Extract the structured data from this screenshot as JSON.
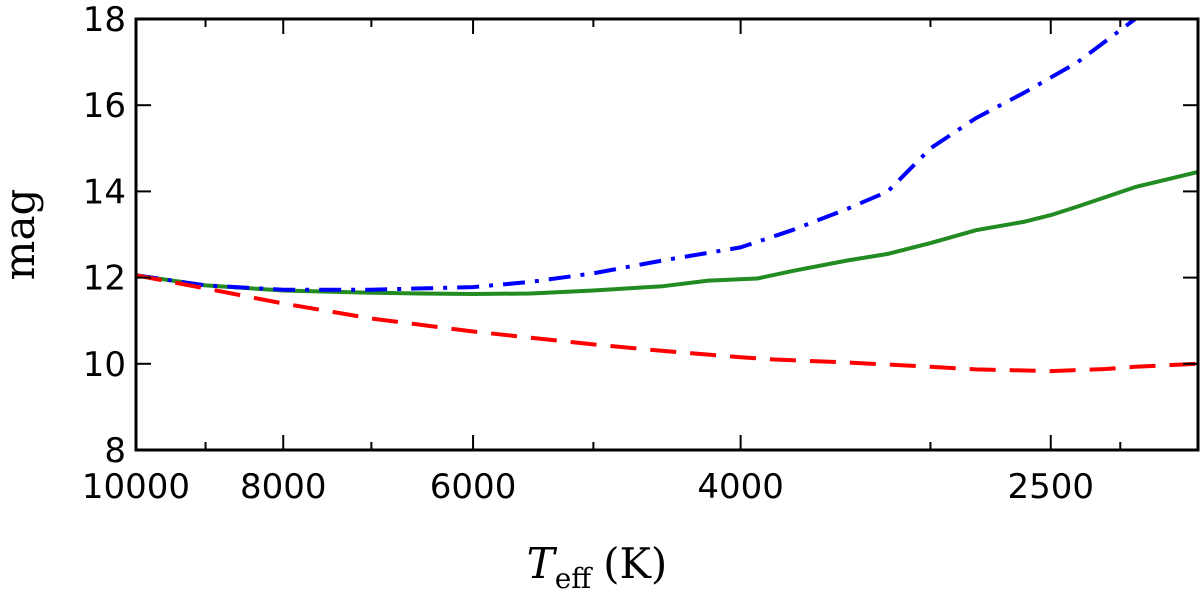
{
  "chart_data": {
    "type": "line",
    "title": "",
    "xlabel": "T",
    "xlabel_sub": "eff",
    "xlabel_unit": "(K)",
    "ylabel": "mag",
    "x_scale": "log",
    "x_reversed": true,
    "xlim": [
      10000,
      2000
    ],
    "ylim": [
      8,
      18
    ],
    "xticks": [
      10000,
      8000,
      6000,
      4000,
      2500
    ],
    "xtick_labels": [
      "10000",
      "8000",
      "6000",
      "4000",
      "2500"
    ],
    "x_minor_ticks": [
      9000,
      7000,
      5000,
      3000,
      2250
    ],
    "yticks": [
      8,
      10,
      12,
      14,
      16,
      18
    ],
    "ytick_labels": [
      "8",
      "10",
      "12",
      "14",
      "16",
      "18"
    ],
    "grid": false,
    "series": [
      {
        "name": "solid",
        "color": "#228b22",
        "style": "solid",
        "x": [
          10000,
          9000,
          8000,
          7000,
          6500,
          6000,
          5500,
          5000,
          4500,
          4200,
          3900,
          3700,
          3400,
          3200,
          3000,
          2800,
          2600,
          2500,
          2400,
          2200,
          2000
        ],
        "y": [
          12.05,
          11.82,
          11.7,
          11.65,
          11.63,
          11.62,
          11.63,
          11.7,
          11.8,
          11.93,
          11.98,
          12.15,
          12.4,
          12.55,
          12.8,
          13.1,
          13.3,
          13.45,
          13.65,
          14.1,
          14.45
        ]
      },
      {
        "name": "dash-dot",
        "color": "#0000ff",
        "style": "dashdot",
        "x": [
          10000,
          9000,
          8000,
          7000,
          6000,
          5500,
          5000,
          4500,
          4000,
          3700,
          3400,
          3200,
          3000,
          2800,
          2600,
          2400,
          2200
        ],
        "y": [
          12.05,
          11.82,
          11.72,
          11.72,
          11.78,
          11.9,
          12.1,
          12.4,
          12.7,
          13.1,
          13.6,
          14.0,
          15.0,
          15.7,
          16.3,
          17.0,
          18.0
        ]
      },
      {
        "name": "dashed",
        "color": "#ff0000",
        "style": "dashed",
        "x": [
          10000,
          9000,
          8000,
          7000,
          6000,
          5000,
          4500,
          4000,
          3800,
          3400,
          3000,
          2800,
          2500,
          2300,
          2200,
          2000
        ],
        "y": [
          12.05,
          11.75,
          11.4,
          11.05,
          10.75,
          10.45,
          10.3,
          10.15,
          10.1,
          10.03,
          9.93,
          9.87,
          9.83,
          9.88,
          9.93,
          10.0
        ]
      }
    ]
  }
}
